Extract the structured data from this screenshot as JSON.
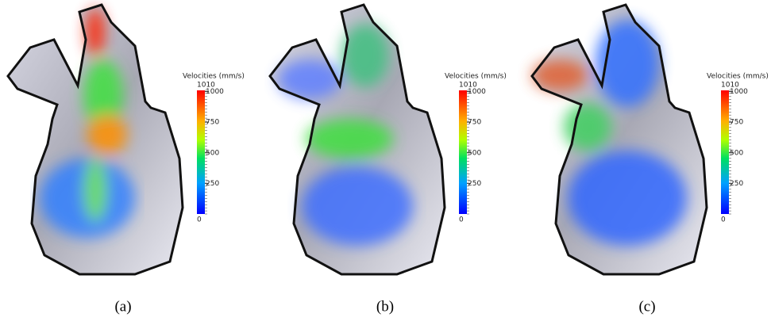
{
  "panels": [
    {
      "colorbar": {
        "title": "Velocities (mm/s)",
        "min": 0,
        "max": 1010,
        "ticks": [
          250,
          500,
          750,
          1000
        ]
      },
      "caption": "(a)"
    },
    {
      "colorbar": {
        "title": "Velocities (mm/s)",
        "min": 0,
        "max": 1010,
        "ticks": [
          250,
          500,
          750,
          1000
        ]
      },
      "caption": "(b)"
    },
    {
      "colorbar": {
        "title": "Velocities (mm/s)",
        "min": 0,
        "max": 1010,
        "ticks": [
          250,
          500,
          750,
          1000
        ]
      },
      "caption": "(c)"
    }
  ]
}
